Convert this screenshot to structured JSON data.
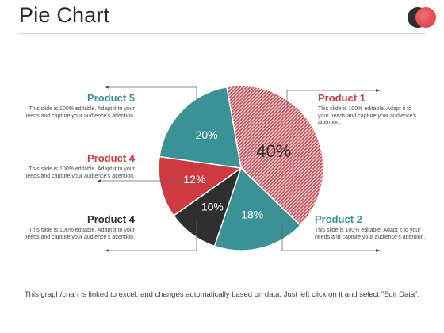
{
  "title": "Pie Chart",
  "footer": "This graph/chart is linked to excel, and changes automatically  based on data. Just left click on it and select \"Edit Data\".",
  "colors": {
    "teal": "#3a9296",
    "red": "#cf3a40",
    "dark": "#2f2f2f",
    "pink_hatch": "#c65058"
  },
  "chart_data": {
    "type": "pie",
    "title": "",
    "slices": [
      {
        "label": "Product 1",
        "value": 40,
        "value_label": "40%",
        "color": "#c65058",
        "description": "This slide is 100% editable. Adapt it to your needs and capture your audience's attention."
      },
      {
        "label": "Product 2",
        "value": 18,
        "value_label": "18%",
        "color": "#3a9296",
        "description": "This slide is 100% editable. Adapt it to your needs and capture your audience's attention."
      },
      {
        "label": "Product 4",
        "value": 10,
        "value_label": "10%",
        "color": "#2f2f2f",
        "description": "This slide is 100% editable. Adapt it to your needs and capture your audience's attention."
      },
      {
        "label": "Product 4",
        "value": 12,
        "value_label": "12%",
        "color": "#cf3a40",
        "description": "This slide is 100% editable. Adapt it to your needs and capture your audience's attention."
      },
      {
        "label": "Product 5",
        "value": 20,
        "value_label": "20%",
        "color": "#3a9296",
        "description": "This slide is 100% editable. Adapt it to your needs and capture your audience's attention."
      }
    ]
  }
}
